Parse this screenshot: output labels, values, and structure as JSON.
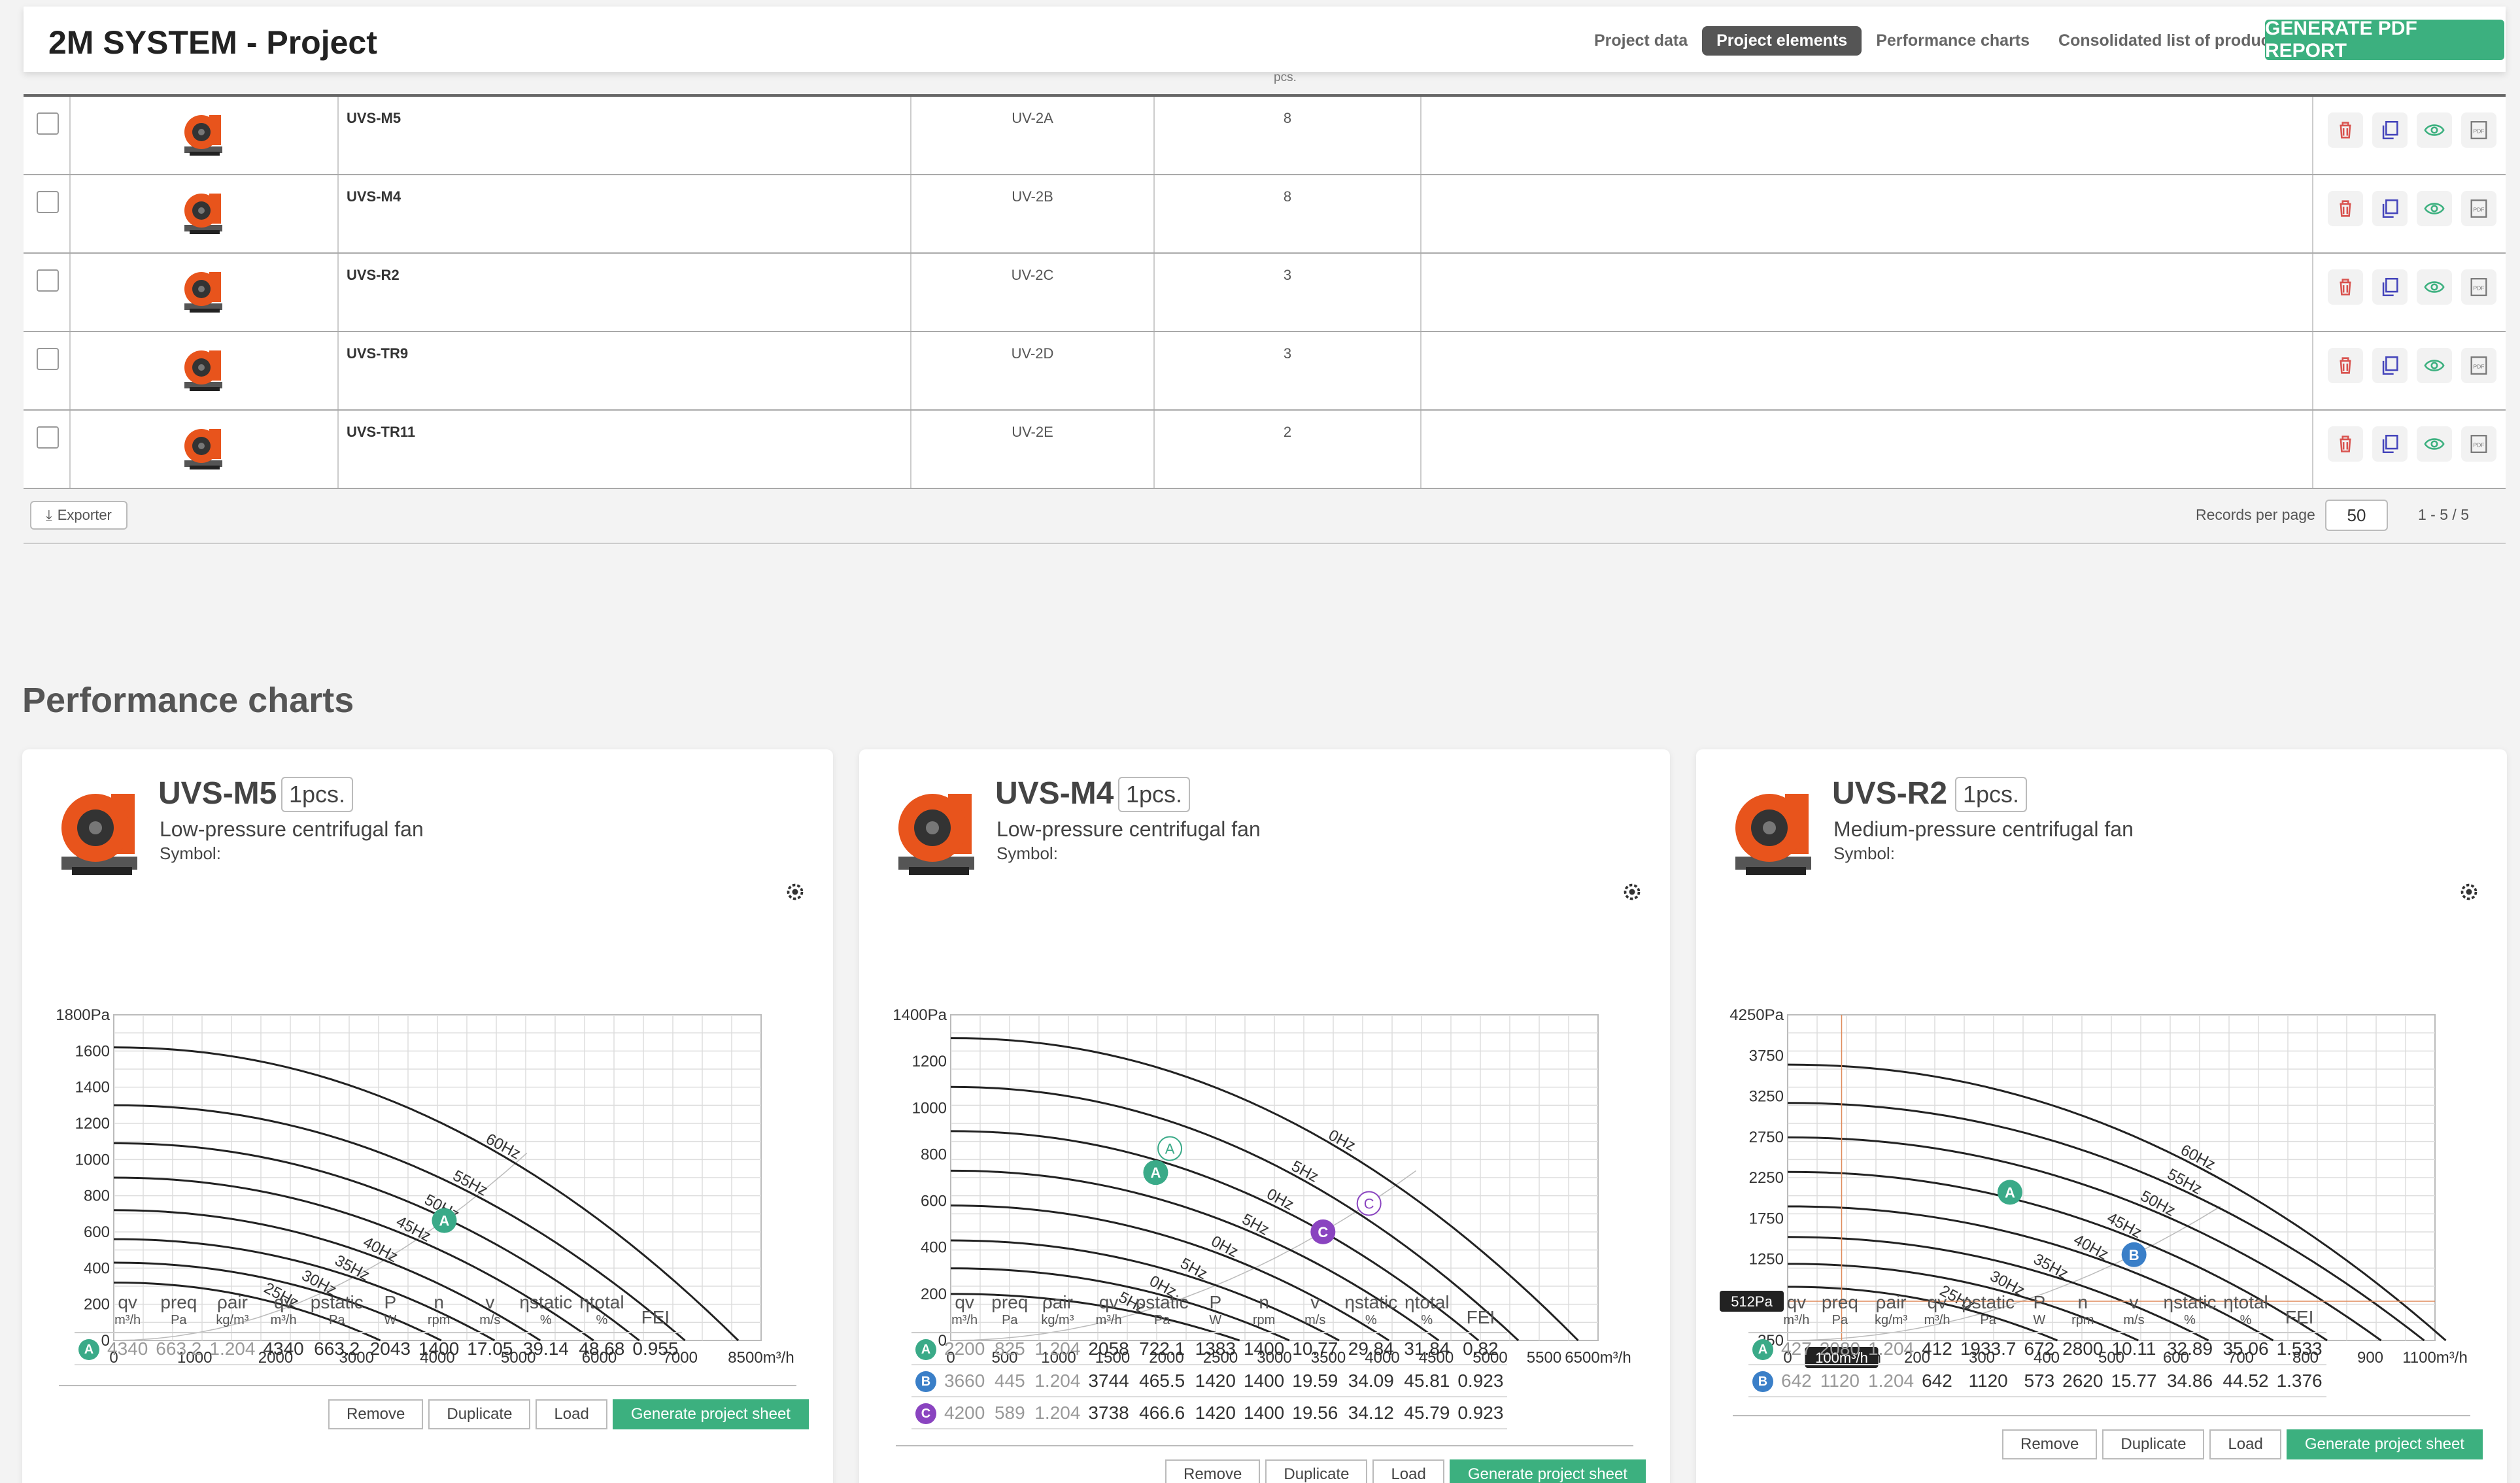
{
  "app": {
    "title": "2M SYSTEM - Project"
  },
  "nav": {
    "items": [
      "Project data",
      "Project elements",
      "Performance charts",
      "Consolidated list of products"
    ],
    "active": "Project elements",
    "pdf_button": "GENERATE PDF REPORT"
  },
  "table": {
    "qty_unit": "pcs.",
    "rows": [
      {
        "name": "UVS-M5",
        "symbol": "UV-2A",
        "qty": "8"
      },
      {
        "name": "UVS-M4",
        "symbol": "UV-2B",
        "qty": "8"
      },
      {
        "name": "UVS-R2",
        "symbol": "UV-2C",
        "qty": "3"
      },
      {
        "name": "UVS-TR9",
        "symbol": "UV-2D",
        "qty": "3"
      },
      {
        "name": "UVS-TR11",
        "symbol": "UV-2E",
        "qty": "2"
      }
    ],
    "export_label": "Exporter",
    "records_label": "Records per page",
    "records_value": "50",
    "range": "1 - 5 / 5"
  },
  "colors": {
    "accent": "#3cb07f",
    "A": "#3aaa88",
    "B": "#3a7fc8",
    "C": "#8a44c0",
    "delete": "#d9534f",
    "duplicate": "#4444bb",
    "view": "#3cb07f"
  },
  "section_title": "Performance charts",
  "table_headers": [
    {
      "s": "qv",
      "u": "m³/h"
    },
    {
      "s": "preq",
      "u": "Pa"
    },
    {
      "s": "ρair",
      "u": "kg/m³"
    },
    {
      "s": "qv",
      "u": "m³/h"
    },
    {
      "s": "pstatic",
      "u": "Pa"
    },
    {
      "s": "P",
      "u": "W"
    },
    {
      "s": "n",
      "u": "rpm"
    },
    {
      "s": "v",
      "u": "m/s"
    },
    {
      "s": "ηstatic",
      "u": "%"
    },
    {
      "s": "ηtotal",
      "u": "%"
    },
    {
      "s": "FEI",
      "u": ""
    }
  ],
  "buttons": {
    "remove": "Remove",
    "duplicate": "Duplicate",
    "load": "Load",
    "generate": "Generate project sheet"
  },
  "cards": [
    {
      "title": "UVS-M5",
      "pcs": "1pcs.",
      "subtitle": "Low-pressure centrifugal fan",
      "symbol_label": "Symbol:",
      "rows": [
        {
          "pt": "A",
          "v": [
            "4340",
            "663.2",
            "1.204",
            "4340",
            "663.2",
            "2043",
            "1400",
            "17.05",
            "39.14",
            "48.68",
            "0.955"
          ]
        }
      ]
    },
    {
      "title": "UVS-M4",
      "pcs": "1pcs.",
      "subtitle": "Low-pressure centrifugal fan",
      "symbol_label": "Symbol:",
      "rows": [
        {
          "pt": "A",
          "v": [
            "2200",
            "825",
            "1.204",
            "2058",
            "722.1",
            "1383",
            "1400",
            "10.77",
            "29.84",
            "31.84",
            "0.82"
          ]
        },
        {
          "pt": "B",
          "v": [
            "3660",
            "445",
            "1.204",
            "3744",
            "465.5",
            "1420",
            "1400",
            "19.59",
            "34.09",
            "45.81",
            "0.923"
          ]
        },
        {
          "pt": "C",
          "v": [
            "4200",
            "589",
            "1.204",
            "3738",
            "466.6",
            "1420",
            "1400",
            "19.56",
            "34.12",
            "45.79",
            "0.923"
          ]
        }
      ]
    },
    {
      "title": "UVS-R2",
      "pcs": "1pcs.",
      "subtitle": "Medium-pressure centrifugal fan",
      "symbol_label": "Symbol:",
      "rows": [
        {
          "pt": "A",
          "v": [
            "427",
            "2080",
            "1.204",
            "412",
            "1933.7",
            "672",
            "2800",
            "10.11",
            "32.89",
            "35.06",
            "1.533"
          ]
        },
        {
          "pt": "B",
          "v": [
            "642",
            "1120",
            "1.204",
            "642",
            "1120",
            "573",
            "2620",
            "15.77",
            "34.86",
            "44.52",
            "1.376"
          ]
        }
      ]
    }
  ],
  "chart_data": [
    {
      "type": "line",
      "title": "UVS-M5",
      "xlim": [
        0,
        8500
      ],
      "ylim": [
        0,
        1800
      ],
      "x_ticks": [
        "0",
        "1000",
        "2000",
        "3000",
        "4000",
        "5000",
        "6000",
        "7000",
        "8500m³/h"
      ],
      "y_ticks": [
        "0",
        "200",
        "400",
        "600",
        "800",
        "1000",
        "1200",
        "1400",
        "1600",
        "1800Pa"
      ],
      "curve_labels": [
        "25Hz",
        "30Hz",
        "35Hz",
        "40Hz",
        "45Hz",
        "50Hz",
        "55Hz",
        "60Hz"
      ],
      "curves": [
        {
          "p0": 320,
          "qmax": 3500
        },
        {
          "p0": 430,
          "qmax": 4300
        },
        {
          "p0": 560,
          "qmax": 5000
        },
        {
          "p0": 720,
          "qmax": 5600
        },
        {
          "p0": 900,
          "qmax": 6300
        },
        {
          "p0": 1090,
          "qmax": 6900
        },
        {
          "p0": 1300,
          "qmax": 7500
        },
        {
          "p0": 1620,
          "qmax": 8200
        }
      ],
      "points": [
        {
          "label": "A",
          "x": 4340,
          "y": 663
        }
      ]
    },
    {
      "type": "line",
      "title": "UVS-M4",
      "xlim": [
        0,
        6500
      ],
      "ylim": [
        0,
        1400
      ],
      "x_ticks": [
        "0",
        "500",
        "1000",
        "1500",
        "2000",
        "2500",
        "3000",
        "3500",
        "4000",
        "4500",
        "5000",
        "5500",
        "6500m³/h"
      ],
      "y_ticks": [
        "0",
        "200",
        "400",
        "600",
        "800",
        "1000",
        "1200",
        "1400Pa"
      ],
      "curve_labels": [
        "5Hz",
        "0Hz",
        "5Hz",
        "0Hz",
        "5Hz",
        "0Hz",
        "5Hz",
        "0Hz"
      ],
      "curves": [
        {
          "p0": 200,
          "qmax": 2900
        },
        {
          "p0": 310,
          "qmax": 3400
        },
        {
          "p0": 430,
          "qmax": 3900
        },
        {
          "p0": 580,
          "qmax": 4400
        },
        {
          "p0": 730,
          "qmax": 4900
        },
        {
          "p0": 900,
          "qmax": 5300
        },
        {
          "p0": 1090,
          "qmax": 5700
        },
        {
          "p0": 1300,
          "qmax": 6300
        }
      ],
      "points": [
        {
          "label": "A",
          "x": 2058,
          "y": 722
        },
        {
          "label": "C",
          "x": 3738,
          "y": 467
        }
      ],
      "req_points": [
        {
          "label": "A",
          "x": 2200,
          "y": 825
        },
        {
          "label": "C",
          "x": 4200,
          "y": 589
        }
      ]
    },
    {
      "type": "line",
      "title": "UVS-R2",
      "xlim": [
        0,
        1200
      ],
      "ylim": [
        0,
        4250
      ],
      "x_ticks": [
        "0",
        "100m³/h",
        "200",
        "300",
        "400",
        "500",
        "600",
        "700",
        "800",
        "900",
        "1100m³/h"
      ],
      "y_ticks": [
        "250",
        "750",
        "1250",
        "1750",
        "2250",
        "2750",
        "3250",
        "3750",
        "4250Pa"
      ],
      "curve_labels": [
        "25Hz",
        "30Hz",
        "35Hz",
        "40Hz",
        "45Hz",
        "50Hz",
        "55Hz",
        "60Hz"
      ],
      "curves": [
        {
          "p0": 700,
          "qmax": 500
        },
        {
          "p0": 1000,
          "qmax": 650
        },
        {
          "p0": 1350,
          "qmax": 780
        },
        {
          "p0": 1750,
          "qmax": 900
        },
        {
          "p0": 2200,
          "qmax": 1000
        },
        {
          "p0": 2650,
          "qmax": 1100
        },
        {
          "p0": 3100,
          "qmax": 1180
        },
        {
          "p0": 3600,
          "qmax": 1220
        }
      ],
      "points": [
        {
          "label": "A",
          "x": 412,
          "y": 1934
        },
        {
          "label": "B",
          "x": 642,
          "y": 1120
        }
      ],
      "cursor": {
        "x": 100,
        "y": 512,
        "x_label": "100m³/h",
        "y_label": "512Pa"
      }
    }
  ]
}
